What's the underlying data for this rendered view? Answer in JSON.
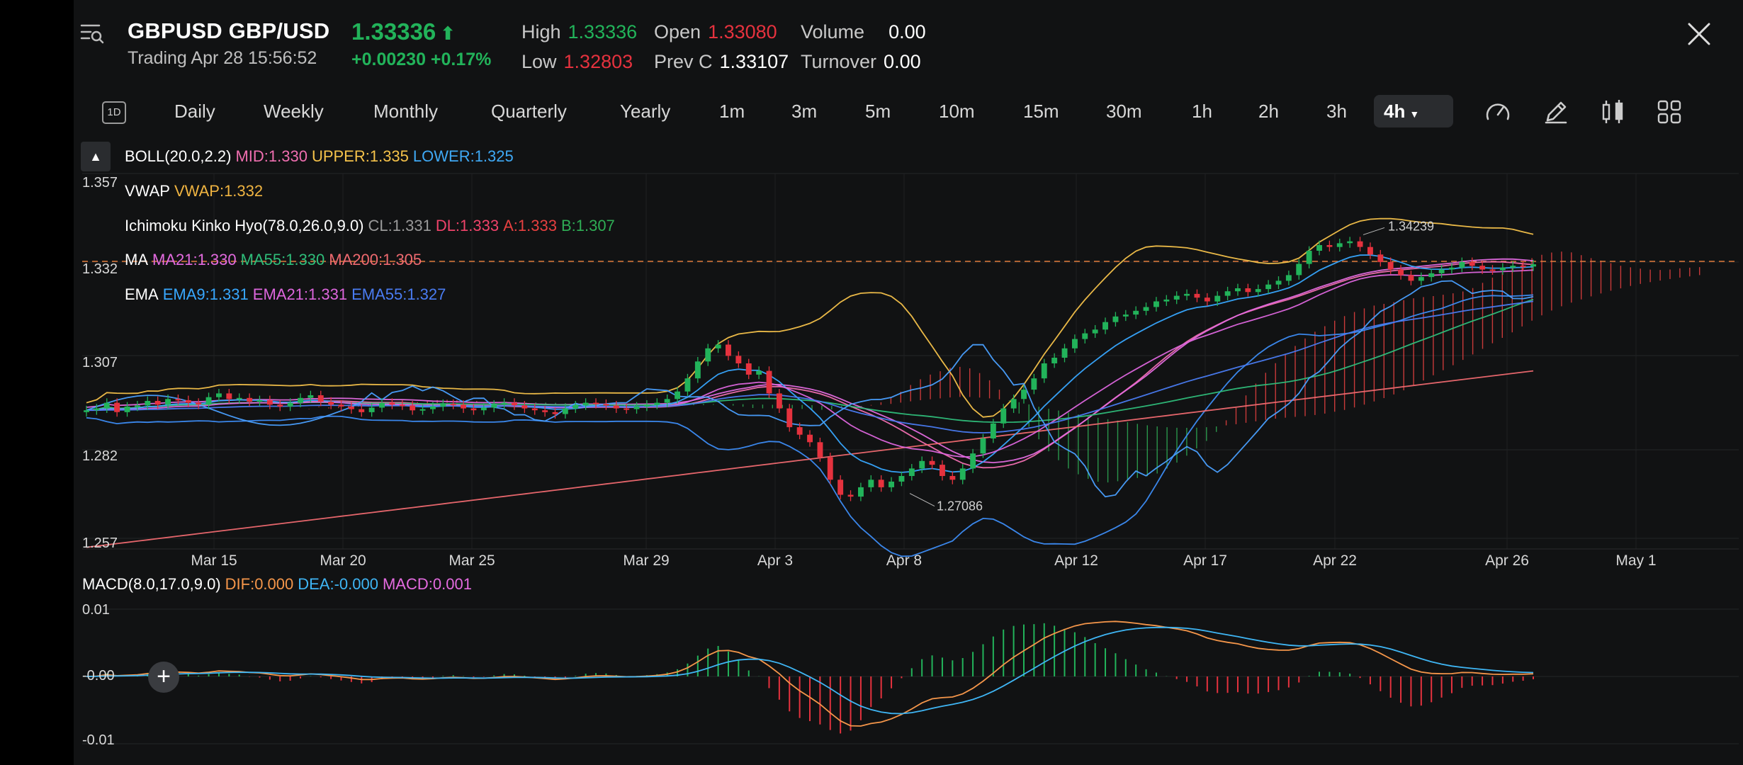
{
  "header": {
    "symbol": "GBPUSD GBP/USD",
    "price": "1.33336",
    "status": "Trading  Apr 28 15:56:52",
    "change": "+0.00230 +0.17%",
    "high_label": "High",
    "high_value": "1.33336",
    "low_label": "Low",
    "low_value": "1.32803",
    "open_label": "Open",
    "open_value": "1.33080",
    "prevc_label": "Prev C",
    "prevc_value": "1.33107",
    "volume_label": "Volume",
    "volume_value": "0.00",
    "turnover_label": "Turnover",
    "turnover_value": "0.00"
  },
  "timeframes": {
    "icon_label": "1D",
    "items": [
      "Daily",
      "Weekly",
      "Monthly",
      "Quarterly",
      "Yearly",
      "1m",
      "3m",
      "5m",
      "10m",
      "15m",
      "30m",
      "1h",
      "2h",
      "3h"
    ],
    "active": "4h"
  },
  "indicators": {
    "boll": {
      "name": "BOLL(20.0,2.2)",
      "mid": "MID:1.330",
      "upper": "UPPER:1.335",
      "lower": "LOWER:1.325"
    },
    "vwap": {
      "name": "VWAP",
      "value": "VWAP:1.332"
    },
    "ichimoku": {
      "name": "Ichimoku Kinko Hyo(78.0,26.0,9.0)",
      "cl": "CL:1.331",
      "dl": "DL:1.333",
      "a": "A:1.333",
      "b": "B:1.307"
    },
    "ma": {
      "name": "MA",
      "ma21": "MA21:1.330",
      "ma55": "MA55:1.330",
      "ma200": "MA200:1.305"
    },
    "ema": {
      "name": "EMA",
      "ema9": "EMA9:1.331",
      "ema21": "EMA21:1.331",
      "ema55": "EMA55:1.327"
    },
    "macd": {
      "name": "MACD(8.0,17.0,9.0)",
      "dif": "DIF:0.000",
      "dea": "DEA:-0.000",
      "macd": "MACD:0.001"
    }
  },
  "price_axis": [
    "1.357",
    "1.332",
    "1.307",
    "1.282",
    "1.257"
  ],
  "macd_axis": [
    "0.01",
    "-0.00",
    "-0.01"
  ],
  "date_axis": [
    "Mar 15",
    "Mar 20",
    "Mar 25",
    "Mar 29",
    "Apr 3",
    "Apr 8",
    "Apr 12",
    "Apr 17",
    "Apr 22",
    "Apr 26",
    "May 1"
  ],
  "annotations": {
    "high": "1.34239",
    "low": "1.27086"
  },
  "colors": {
    "up": "#22b35a",
    "down": "#e5323e",
    "boll_mid": "#f06fb0",
    "boll_upper": "#f5c24a",
    "boll_lower": "#3d8df5",
    "vwap": "#f0b441",
    "ichimoku_cl": "#9a9a9a",
    "ichimoku_dl": "#f0436a",
    "ichimoku_a": "#e84040",
    "ichimoku_b": "#2fae55",
    "ma21": "#e46be0",
    "ma55": "#2fbe7a",
    "ma200": "#f06a70",
    "ema9": "#38a8ff",
    "ema21": "#dd66dd",
    "ema55": "#4a7cf2",
    "dif": "#f5964a",
    "dea": "#3fb6f5"
  }
}
